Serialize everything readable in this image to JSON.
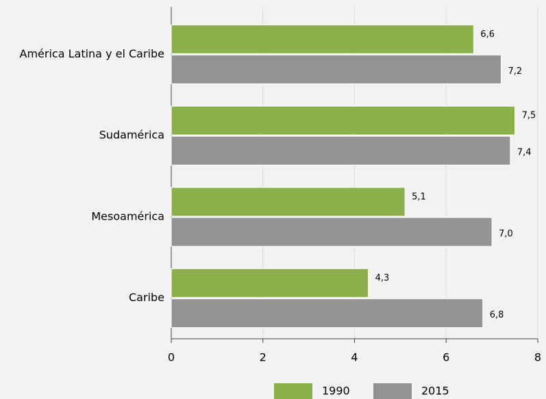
{
  "chart_data": {
    "type": "hbar",
    "categories": [
      "América Latina y el Caribe",
      "Sudamérica",
      "Mesoamérica",
      "Caribe"
    ],
    "series": [
      {
        "name": "1990",
        "color": "#8cb04c",
        "values": [
          6.6,
          7.5,
          5.1,
          4.3
        ],
        "value_labels": [
          "6,6",
          "7,5",
          "5,1",
          "4,3"
        ]
      },
      {
        "name": "2015",
        "color": "#939393",
        "values": [
          7.2,
          7.4,
          7.0,
          6.8
        ],
        "value_labels": [
          "7,2",
          "7,4",
          "7,0",
          "6,8"
        ]
      }
    ],
    "xlim": [
      0,
      8
    ],
    "xticks": [
      0,
      2,
      4,
      6,
      8
    ],
    "grid": true,
    "legend": "bottom"
  }
}
